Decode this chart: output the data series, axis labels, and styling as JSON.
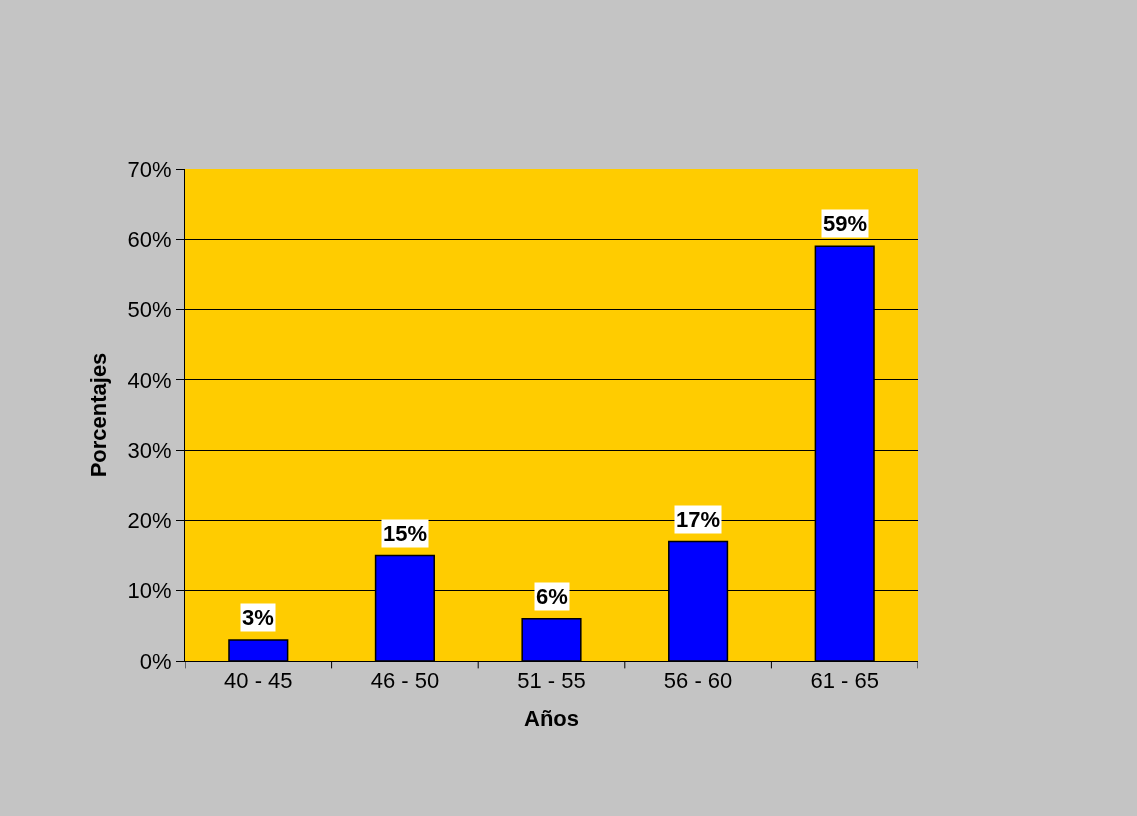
{
  "chart_data": {
    "type": "bar",
    "xlabel": "Años",
    "ylabel": "Porcentajes",
    "categories": [
      "40 - 45",
      "46 - 50",
      "51 - 55",
      "56 - 60",
      "61 - 65"
    ],
    "values": [
      3,
      15,
      6,
      17,
      59
    ],
    "color": "#0000ff",
    "value_labels": [
      "3%",
      "15%",
      "6%",
      "17%",
      "59%"
    ],
    "ylim": [
      0,
      70
    ],
    "yticks": [
      {
        "value": 0,
        "label": "0%"
      },
      {
        "value": 10,
        "label": "10%"
      },
      {
        "value": 20,
        "label": "20%"
      },
      {
        "value": 30,
        "label": "30%"
      },
      {
        "value": 40,
        "label": "40%"
      },
      {
        "value": 50,
        "label": "50%"
      },
      {
        "value": 60,
        "label": "60%"
      },
      {
        "value": 70,
        "label": "70%"
      }
    ],
    "grid": "y",
    "legend": false
  }
}
